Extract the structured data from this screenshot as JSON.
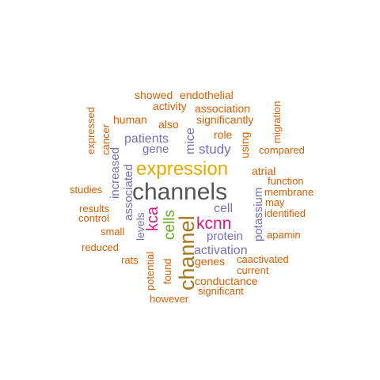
{
  "palette": {
    "orange": "#d95f02",
    "purple": "#7570b3",
    "gold": "#e6ab02",
    "gray": "#555555",
    "magenta": "#d01b86",
    "green": "#66a61e",
    "brown": "#a6761d"
  },
  "words": [
    {
      "text": "channels",
      "color": "gray"
    },
    {
      "text": "expression",
      "color": "gold"
    },
    {
      "text": "channel",
      "color": "brown"
    },
    {
      "text": "kcnn",
      "color": "magenta"
    },
    {
      "text": "cells",
      "color": "green"
    },
    {
      "text": "kca",
      "color": "magenta"
    },
    {
      "text": "study",
      "color": "purple"
    },
    {
      "text": "patients",
      "color": "purple"
    },
    {
      "text": "mice",
      "color": "purple"
    },
    {
      "text": "gene",
      "color": "purple"
    },
    {
      "text": "activation",
      "color": "purple"
    },
    {
      "text": "cell",
      "color": "purple"
    },
    {
      "text": "protein",
      "color": "purple"
    },
    {
      "text": "potassium",
      "color": "purple"
    },
    {
      "text": "associated",
      "color": "purple"
    },
    {
      "text": "increased",
      "color": "purple"
    },
    {
      "text": "levels",
      "color": "purple"
    },
    {
      "text": "showed",
      "color": "orange"
    },
    {
      "text": "endothelial",
      "color": "orange"
    },
    {
      "text": "activity",
      "color": "orange"
    },
    {
      "text": "association",
      "color": "orange"
    },
    {
      "text": "human",
      "color": "orange"
    },
    {
      "text": "also",
      "color": "orange"
    },
    {
      "text": "significantly",
      "color": "orange"
    },
    {
      "text": "role",
      "color": "orange"
    },
    {
      "text": "using",
      "color": "orange"
    },
    {
      "text": "migration",
      "color": "orange"
    },
    {
      "text": "expressed",
      "color": "orange"
    },
    {
      "text": "cancer",
      "color": "orange"
    },
    {
      "text": "compared",
      "color": "orange"
    },
    {
      "text": "atrial",
      "color": "orange"
    },
    {
      "text": "function",
      "color": "orange"
    },
    {
      "text": "membrane",
      "color": "orange"
    },
    {
      "text": "studies",
      "color": "orange"
    },
    {
      "text": "may",
      "color": "orange"
    },
    {
      "text": "results",
      "color": "orange"
    },
    {
      "text": "identified",
      "color": "orange"
    },
    {
      "text": "control",
      "color": "orange"
    },
    {
      "text": "small",
      "color": "orange"
    },
    {
      "text": "apamin",
      "color": "orange"
    },
    {
      "text": "reduced",
      "color": "orange"
    },
    {
      "text": "rats",
      "color": "orange"
    },
    {
      "text": "genes",
      "color": "orange"
    },
    {
      "text": "caactivated",
      "color": "orange"
    },
    {
      "text": "potential",
      "color": "orange"
    },
    {
      "text": "found",
      "color": "orange"
    },
    {
      "text": "current",
      "color": "orange"
    },
    {
      "text": "conductance",
      "color": "orange"
    },
    {
      "text": "significant",
      "color": "orange"
    },
    {
      "text": "however",
      "color": "orange"
    }
  ]
}
